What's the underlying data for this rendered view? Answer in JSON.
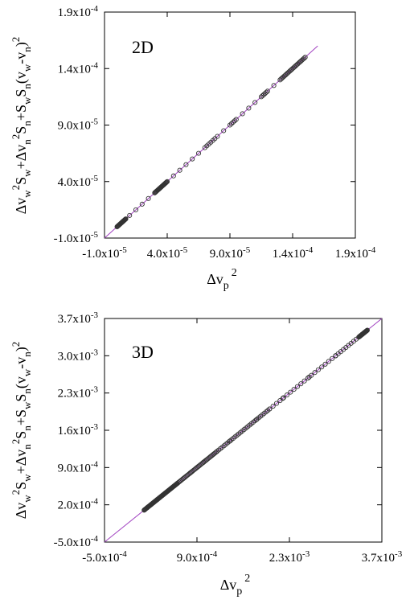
{
  "chart_data": [
    {
      "type": "scatter",
      "panel_label": "2D",
      "xlabel": {
        "base": "Δv",
        "sub": "p",
        "sup": "2"
      },
      "ylabel": "Δv_w^2 S_w + Δv_n^2 S_n + S_w S_n (v_w - v_n)^2",
      "xlim": [
        -1e-05,
        0.00019
      ],
      "ylim": [
        -1e-05,
        0.00019
      ],
      "xticks": [
        -1e-05,
        4e-05,
        9e-05,
        0.00014,
        0.00019
      ],
      "xtick_labels": [
        {
          "m": "-1.0x10",
          "e": "-5"
        },
        {
          "m": "4.0x10",
          "e": "-5"
        },
        {
          "m": "9.0x10",
          "e": "-5"
        },
        {
          "m": "1.4x10",
          "e": "-4"
        },
        {
          "m": "1.9x10",
          "e": "-4"
        }
      ],
      "yticks": [
        -1e-05,
        4e-05,
        9e-05,
        0.00014,
        0.00019
      ],
      "ytick_labels": [
        {
          "m": "-1.0x10",
          "e": "-5"
        },
        {
          "m": "4.0x10",
          "e": "-5"
        },
        {
          "m": "9.0x10",
          "e": "-5"
        },
        {
          "m": "1.4x10",
          "e": "-4"
        },
        {
          "m": "1.9x10",
          "e": "-4"
        }
      ],
      "fit_line": {
        "x": [
          -1e-05,
          0.00016
        ],
        "y": [
          -1e-05,
          0.00016
        ],
        "color": "#a040c0"
      },
      "clusters": [
        {
          "from": 0.0,
          "to": 7e-06,
          "n": 22
        },
        {
          "from": 3e-05,
          "to": 4e-05,
          "n": 24
        },
        {
          "from": 7e-05,
          "to": 7.8e-05,
          "n": 6
        },
        {
          "from": 9e-05,
          "to": 9.5e-05,
          "n": 5
        },
        {
          "from": 0.000115,
          "to": 0.00012,
          "n": 6
        },
        {
          "from": 0.00013,
          "to": 0.00015,
          "n": 24
        }
      ],
      "x": [
        5e-06,
        1e-05,
        1.5e-05,
        2e-05,
        2.5e-05,
        4.5e-05,
        5e-05,
        5.5e-05,
        6e-05,
        6.5e-05,
        8e-05,
        8.5e-05,
        0.0001,
        0.000105,
        0.00011,
        0.000125
      ],
      "y": [
        5e-06,
        1e-05,
        1.5e-05,
        2e-05,
        2.5e-05,
        4.5e-05,
        5e-05,
        5.5e-05,
        6e-05,
        6.5e-05,
        8e-05,
        8.5e-05,
        0.0001,
        0.000105,
        0.00011,
        0.000125
      ]
    },
    {
      "type": "scatter",
      "panel_label": "3D",
      "xlabel": {
        "base": "Δv",
        "sub": "p",
        "sup": "2"
      },
      "ylabel": "Δv_w^2 S_w + Δv_n^2 S_n + S_w S_n (v_w - v_n)^2",
      "xlim": [
        -0.0005,
        0.0037
      ],
      "ylim": [
        -0.0005,
        0.0037
      ],
      "xticks": [
        -0.0005,
        0.0009,
        0.0023,
        0.0037
      ],
      "xtick_labels": [
        {
          "m": "-5.0x10",
          "e": "-4"
        },
        {
          "m": "9.0x10",
          "e": "-4"
        },
        {
          "m": "2.3x10",
          "e": "-3"
        },
        {
          "m": "3.7x10",
          "e": "-3"
        }
      ],
      "yticks": [
        -0.0005,
        0.0002,
        0.0009,
        0.0016,
        0.0023,
        0.003,
        0.0037
      ],
      "ytick_labels": [
        {
          "m": "-5.0x10",
          "e": "-4"
        },
        {
          "m": "2.0x10",
          "e": "-4"
        },
        {
          "m": "9.0x10",
          "e": "-4"
        },
        {
          "m": "1.6x10",
          "e": "-3"
        },
        {
          "m": "2.3x10",
          "e": "-3"
        },
        {
          "m": "3.0x10",
          "e": "-3"
        },
        {
          "m": "3.7x10",
          "e": "-3"
        }
      ],
      "fit_line": {
        "x": [
          -0.0005,
          0.0037
        ],
        "y": [
          -0.0005,
          0.0037
        ],
        "color": "#a040c0"
      },
      "clusters": [
        {
          "from": 0.0001,
          "to": 0.0006,
          "n": 70
        },
        {
          "from": 0.0006,
          "to": 0.0012,
          "n": 40
        },
        {
          "from": 0.0012,
          "to": 0.002,
          "n": 30
        },
        {
          "from": 0.002,
          "to": 0.003,
          "n": 20
        },
        {
          "from": 0.003,
          "to": 0.00335,
          "n": 10
        },
        {
          "from": 0.00336,
          "to": 0.00348,
          "n": 25
        }
      ],
      "x": [
        0.00015,
        0.0003,
        0.0005,
        0.0008,
        0.001,
        0.0014,
        0.0018,
        0.0022,
        0.0026,
        0.003,
        0.0034
      ],
      "y": [
        0.00015,
        0.0003,
        0.0005,
        0.0008,
        0.001,
        0.0014,
        0.0018,
        0.0022,
        0.0026,
        0.003,
        0.0034
      ]
    }
  ]
}
